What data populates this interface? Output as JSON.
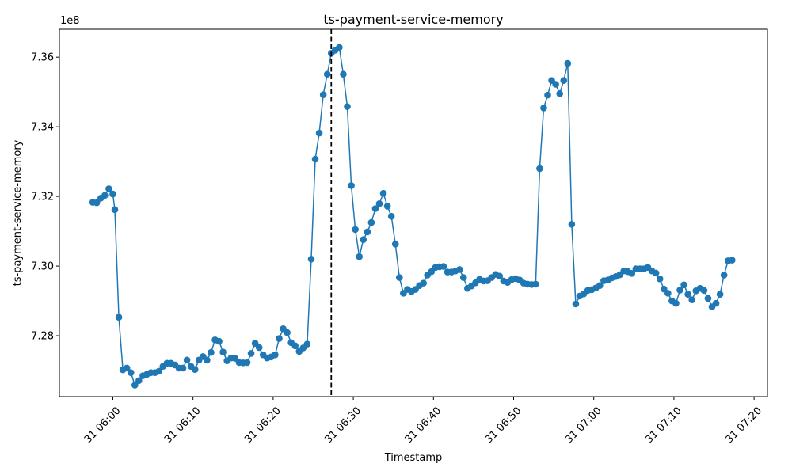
{
  "chart_data": {
    "type": "line",
    "title": "ts-payment-service-memory",
    "xlabel": "Timestamp",
    "ylabel": "ts-payment-service-memory",
    "y_offset_label": "1e8",
    "y_scale": 100000000,
    "ylim": [
      7.2625,
      7.368
    ],
    "xlim": [
      "2024-03-31T05:53:20",
      "2024-03-31T07:21:40"
    ],
    "y_ticks": [
      7.28,
      7.3,
      7.32,
      7.34,
      7.36
    ],
    "y_tick_labels": [
      "7.28",
      "7.30",
      "7.32",
      "7.34",
      "7.36"
    ],
    "x_ticks": [
      "2024-03-31T06:00",
      "2024-03-31T06:10",
      "2024-03-31T06:20",
      "2024-03-31T06:30",
      "2024-03-31T06:40",
      "2024-03-31T06:50",
      "2024-03-31T07:00",
      "2024-03-31T07:10",
      "2024-03-31T07:20"
    ],
    "x_tick_labels": [
      "31 06:00",
      "31 06:10",
      "31 06:20",
      "31 06:30",
      "31 06:40",
      "31 06:50",
      "31 07:00",
      "31 07:10",
      "31 07:20"
    ],
    "marker_line": "2024-03-31T06:27:15",
    "grid": false,
    "color": "#1f77b4",
    "series": [
      {
        "x": [
          "2024-03-31T05:57:30",
          "2024-03-31T05:58:00",
          "2024-03-31T05:58:30",
          "2024-03-31T05:59:00",
          "2024-03-31T05:59:30",
          "2024-03-31T06:00:00",
          "2024-03-31T06:00:15",
          "2024-03-31T06:00:45",
          "2024-03-31T06:01:15",
          "2024-03-31T06:01:45",
          "2024-03-31T06:02:15",
          "2024-03-31T06:02:45",
          "2024-03-31T06:03:15",
          "2024-03-31T06:03:45",
          "2024-03-31T06:04:15",
          "2024-03-31T06:04:45",
          "2024-03-31T06:05:15",
          "2024-03-31T06:05:45",
          "2024-03-31T06:06:15",
          "2024-03-31T06:06:45",
          "2024-03-31T06:07:15",
          "2024-03-31T06:07:45",
          "2024-03-31T06:08:15",
          "2024-03-31T06:08:45",
          "2024-03-31T06:09:15",
          "2024-03-31T06:09:45",
          "2024-03-31T06:10:15",
          "2024-03-31T06:10:45",
          "2024-03-31T06:11:15",
          "2024-03-31T06:11:45",
          "2024-03-31T06:12:15",
          "2024-03-31T06:12:45",
          "2024-03-31T06:13:15",
          "2024-03-31T06:13:45",
          "2024-03-31T06:14:15",
          "2024-03-31T06:14:45",
          "2024-03-31T06:15:15",
          "2024-03-31T06:15:45",
          "2024-03-31T06:16:15",
          "2024-03-31T06:16:45",
          "2024-03-31T06:17:15",
          "2024-03-31T06:17:45",
          "2024-03-31T06:18:15",
          "2024-03-31T06:18:45",
          "2024-03-31T06:19:15",
          "2024-03-31T06:19:45",
          "2024-03-31T06:20:15",
          "2024-03-31T06:20:45",
          "2024-03-31T06:21:15",
          "2024-03-31T06:21:45",
          "2024-03-31T06:22:15",
          "2024-03-31T06:22:45",
          "2024-03-31T06:23:15",
          "2024-03-31T06:23:45",
          "2024-03-31T06:24:15",
          "2024-03-31T06:24:45",
          "2024-03-31T06:25:15",
          "2024-03-31T06:25:45",
          "2024-03-31T06:26:15",
          "2024-03-31T06:26:45",
          "2024-03-31T06:27:15",
          "2024-03-31T06:27:45",
          "2024-03-31T06:28:15",
          "2024-03-31T06:28:45",
          "2024-03-31T06:29:15",
          "2024-03-31T06:29:45",
          "2024-03-31T06:30:15",
          "2024-03-31T06:30:45",
          "2024-03-31T06:31:15",
          "2024-03-31T06:31:45",
          "2024-03-31T06:32:15",
          "2024-03-31T06:32:45",
          "2024-03-31T06:33:15",
          "2024-03-31T06:33:45",
          "2024-03-31T06:34:15",
          "2024-03-31T06:34:45",
          "2024-03-31T06:35:15",
          "2024-03-31T06:35:45",
          "2024-03-31T06:36:15",
          "2024-03-31T06:36:45",
          "2024-03-31T06:37:15",
          "2024-03-31T06:37:45",
          "2024-03-31T06:38:15",
          "2024-03-31T06:38:45",
          "2024-03-31T06:39:15",
          "2024-03-31T06:39:45",
          "2024-03-31T06:40:15",
          "2024-03-31T06:40:45",
          "2024-03-31T06:41:15",
          "2024-03-31T06:41:45",
          "2024-03-31T06:42:15",
          "2024-03-31T06:42:45",
          "2024-03-31T06:43:15",
          "2024-03-31T06:43:45",
          "2024-03-31T06:44:15",
          "2024-03-31T06:44:45",
          "2024-03-31T06:45:15",
          "2024-03-31T06:45:45",
          "2024-03-31T06:46:15",
          "2024-03-31T06:46:45",
          "2024-03-31T06:47:15",
          "2024-03-31T06:47:45",
          "2024-03-31T06:48:15",
          "2024-03-31T06:48:45",
          "2024-03-31T06:49:15",
          "2024-03-31T06:49:45",
          "2024-03-31T06:50:15",
          "2024-03-31T06:50:45",
          "2024-03-31T06:51:15",
          "2024-03-31T06:51:45",
          "2024-03-31T06:52:15",
          "2024-03-31T06:52:45",
          "2024-03-31T06:53:15",
          "2024-03-31T06:53:45",
          "2024-03-31T06:54:15",
          "2024-03-31T06:54:45",
          "2024-03-31T06:55:15",
          "2024-03-31T06:55:45",
          "2024-03-31T06:56:15",
          "2024-03-31T06:56:45",
          "2024-03-31T06:57:15",
          "2024-03-31T06:57:45",
          "2024-03-31T06:58:15",
          "2024-03-31T06:58:45",
          "2024-03-31T06:59:15",
          "2024-03-31T06:59:45",
          "2024-03-31T07:00:15",
          "2024-03-31T07:00:45",
          "2024-03-31T07:01:15",
          "2024-03-31T07:01:45",
          "2024-03-31T07:02:15",
          "2024-03-31T07:02:45",
          "2024-03-31T07:03:15",
          "2024-03-31T07:03:45",
          "2024-03-31T07:04:15",
          "2024-03-31T07:04:45",
          "2024-03-31T07:05:15",
          "2024-03-31T07:05:45",
          "2024-03-31T07:06:15",
          "2024-03-31T07:06:45",
          "2024-03-31T07:07:15",
          "2024-03-31T07:07:45",
          "2024-03-31T07:08:15",
          "2024-03-31T07:08:45",
          "2024-03-31T07:09:15",
          "2024-03-31T07:09:45",
          "2024-03-31T07:10:15",
          "2024-03-31T07:10:45",
          "2024-03-31T07:11:15",
          "2024-03-31T07:11:45",
          "2024-03-31T07:12:15",
          "2024-03-31T07:12:45",
          "2024-03-31T07:13:15",
          "2024-03-31T07:13:45",
          "2024-03-31T07:14:15",
          "2024-03-31T07:14:45",
          "2024-03-31T07:15:15",
          "2024-03-31T07:15:45",
          "2024-03-31T07:16:15",
          "2024-03-31T07:16:45",
          "2024-03-31T07:17:15"
        ],
        "values": [
          7.3183,
          7.3182,
          7.3195,
          7.3203,
          7.3222,
          7.3207,
          7.3162,
          7.2853,
          7.2702,
          7.2707,
          7.2694,
          7.2658,
          7.2671,
          7.2685,
          7.2689,
          7.2694,
          7.2694,
          7.2698,
          7.2712,
          7.2721,
          7.2721,
          7.2716,
          7.2707,
          7.2707,
          7.273,
          7.2712,
          7.2703,
          7.273,
          7.274,
          7.273,
          7.2752,
          7.2788,
          7.2784,
          7.2753,
          7.2728,
          7.2736,
          7.2735,
          7.2723,
          7.2722,
          7.2723,
          7.2749,
          7.2778,
          7.2766,
          7.2745,
          7.2736,
          7.2739,
          7.2745,
          7.2792,
          7.282,
          7.2809,
          7.278,
          7.2771,
          7.2755,
          7.2765,
          7.2776,
          7.302,
          7.3307,
          7.3382,
          7.3492,
          7.3551,
          7.3611,
          7.362,
          7.3628,
          7.3551,
          7.3458,
          7.3231,
          7.3105,
          7.3027,
          7.3076,
          7.3098,
          7.3125,
          7.3165,
          7.3179,
          7.3209,
          7.3172,
          7.3143,
          7.3063,
          7.2967,
          7.2922,
          7.2933,
          7.2927,
          7.2933,
          7.2944,
          7.2951,
          7.2974,
          7.2984,
          7.2996,
          7.2998,
          7.2999,
          7.2983,
          7.2983,
          7.2986,
          7.299,
          7.2967,
          7.2936,
          7.2943,
          7.2952,
          7.2962,
          7.2957,
          7.2958,
          7.2967,
          7.2976,
          7.2971,
          7.2957,
          7.2953,
          7.2961,
          7.2964,
          7.296,
          7.2951,
          7.2948,
          7.2947,
          7.2948,
          7.328,
          7.3454,
          7.3491,
          7.3533,
          7.3522,
          7.3495,
          7.3533,
          7.3582,
          7.312,
          7.2891,
          7.2914,
          7.292,
          7.293,
          7.2932,
          7.2937,
          7.2944,
          7.2958,
          7.296,
          7.2966,
          7.297,
          7.2975,
          7.2986,
          7.2984,
          7.2979,
          7.2992,
          7.2992,
          7.2992,
          7.2996,
          7.2986,
          7.298,
          7.2963,
          7.2934,
          7.2922,
          7.29,
          7.2893,
          7.2931,
          7.2946,
          7.2919,
          7.2903,
          7.2929,
          7.2936,
          7.293,
          7.2907,
          7.2883,
          7.2893,
          7.2919,
          7.2974,
          7.3015,
          7.3017
        ]
      }
    ]
  }
}
